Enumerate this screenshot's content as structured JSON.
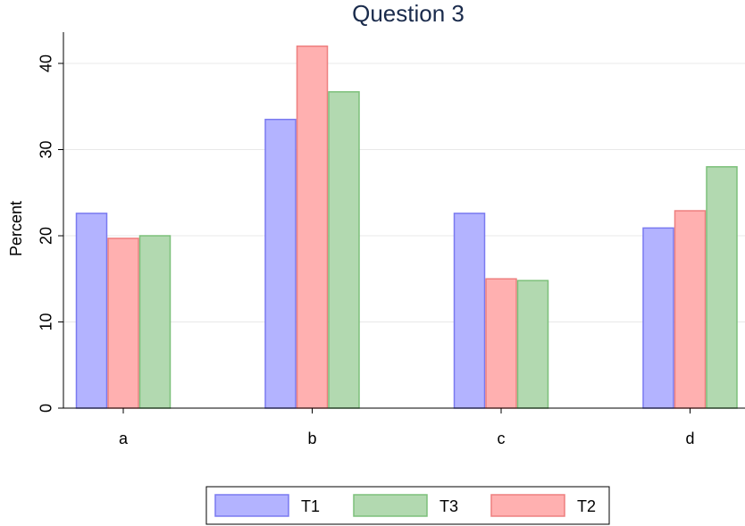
{
  "chart_data": {
    "type": "bar",
    "title": "Question 3",
    "xlabel": "",
    "ylabel": "Percent",
    "categories": [
      "a",
      "b",
      "c",
      "d"
    ],
    "ylim": [
      0,
      43
    ],
    "yticks": [
      0,
      10,
      20,
      30,
      40
    ],
    "grid": true,
    "legend_position": "bottom",
    "series": [
      {
        "name": "T1",
        "color": "#b3b3ff",
        "stroke": "#7a7af0",
        "values": [
          22.6,
          33.5,
          22.6,
          20.9
        ]
      },
      {
        "name": "T2",
        "color": "#ffb0b0",
        "stroke": "#ee7f7f",
        "values": [
          19.7,
          42.0,
          15.0,
          22.9
        ]
      },
      {
        "name": "T3",
        "color": "#b2d9b0",
        "stroke": "#7cc07a",
        "values": [
          20.0,
          36.7,
          14.8,
          28.0
        ]
      }
    ],
    "legend_order": [
      "T1",
      "T3",
      "T2"
    ]
  }
}
